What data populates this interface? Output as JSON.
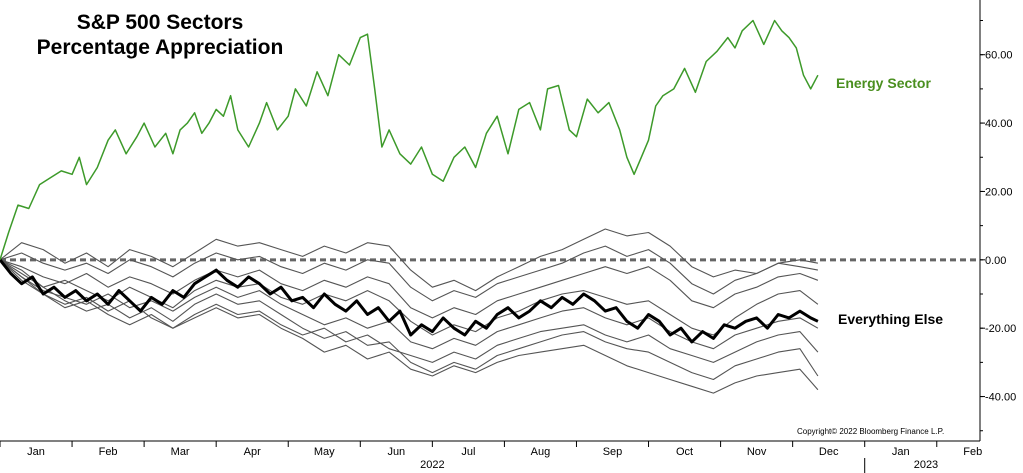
{
  "chart_data": {
    "type": "line",
    "title_line1": "S&P 500 Sectors",
    "title_line2": "Percentage Appreciation",
    "copyright": "Copyright© 2022 Bloomberg Finance L.P.",
    "y_ticks": [
      "60.00",
      "40.00",
      "20.00",
      "0.00",
      "-20.00",
      "-40.00"
    ],
    "x_month_labels": [
      "Jan",
      "Feb",
      "Mar",
      "Apr",
      "May",
      "Jun",
      "Jul",
      "Aug",
      "Sep",
      "Oct",
      "Nov",
      "Dec",
      "Jan",
      "Feb"
    ],
    "x_year_labels": [
      "2022",
      "2023"
    ],
    "ylim": [
      -53,
      76
    ],
    "xlim": [
      0,
      13.6
    ],
    "zero_line": true,
    "colors": {
      "energy": "#3d9a2a",
      "highlight": "#000000",
      "others": "#555555",
      "zero": "#666666"
    },
    "series": [
      {
        "name": "Energy Sector",
        "role": "energy",
        "x": [
          0,
          0.12,
          0.25,
          0.4,
          0.55,
          0.7,
          0.85,
          1.0,
          1.1,
          1.2,
          1.35,
          1.5,
          1.6,
          1.75,
          1.9,
          2.0,
          2.15,
          2.3,
          2.4,
          2.5,
          2.6,
          2.7,
          2.8,
          2.9,
          3.0,
          3.1,
          3.2,
          3.3,
          3.45,
          3.6,
          3.7,
          3.85,
          4.0,
          4.1,
          4.25,
          4.4,
          4.55,
          4.7,
          4.85,
          5.0,
          5.1,
          5.2,
          5.3,
          5.4,
          5.55,
          5.7,
          5.85,
          6.0,
          6.15,
          6.3,
          6.45,
          6.6,
          6.75,
          6.9,
          7.05,
          7.2,
          7.35,
          7.5,
          7.6,
          7.75,
          7.9,
          8.0,
          8.15,
          8.3,
          8.45,
          8.6,
          8.7,
          8.8,
          8.9,
          9.0,
          9.1,
          9.2,
          9.35,
          9.5,
          9.65,
          9.8,
          9.95,
          10.1,
          10.2,
          10.3,
          10.45,
          10.6,
          10.75,
          10.85,
          10.95,
          11.05,
          11.15,
          11.25,
          11.35
        ],
        "values": [
          0,
          8,
          16,
          15,
          22,
          24,
          26,
          25,
          30,
          22,
          27,
          35,
          38,
          31,
          36,
          40,
          33,
          37,
          31,
          38,
          40,
          43,
          37,
          40,
          44,
          42,
          48,
          38,
          33,
          40,
          46,
          38,
          42,
          50,
          45,
          55,
          48,
          60,
          57,
          65,
          66,
          50,
          33,
          38,
          31,
          28,
          33,
          25,
          23,
          30,
          33,
          27,
          37,
          42,
          31,
          44,
          46,
          38,
          50,
          51,
          38,
          36,
          47,
          43,
          46,
          38,
          30,
          25,
          30,
          35,
          45,
          48,
          50,
          56,
          49,
          58,
          61,
          65,
          62,
          67,
          70,
          63,
          70,
          67,
          65,
          62,
          54,
          50,
          54
        ]
      },
      {
        "name": "Everything Else",
        "role": "highlight",
        "x": [
          0,
          0.15,
          0.3,
          0.45,
          0.6,
          0.75,
          0.9,
          1.05,
          1.2,
          1.35,
          1.5,
          1.65,
          1.8,
          1.95,
          2.1,
          2.25,
          2.4,
          2.55,
          2.7,
          2.85,
          3.0,
          3.15,
          3.3,
          3.45,
          3.6,
          3.75,
          3.9,
          4.05,
          4.2,
          4.35,
          4.5,
          4.65,
          4.8,
          4.95,
          5.1,
          5.25,
          5.4,
          5.55,
          5.7,
          5.85,
          6.0,
          6.15,
          6.3,
          6.45,
          6.6,
          6.75,
          6.9,
          7.05,
          7.2,
          7.35,
          7.5,
          7.65,
          7.8,
          7.95,
          8.1,
          8.25,
          8.4,
          8.55,
          8.7,
          8.85,
          9.0,
          9.15,
          9.3,
          9.45,
          9.6,
          9.75,
          9.9,
          10.05,
          10.2,
          10.35,
          10.5,
          10.65,
          10.8,
          10.95,
          11.1,
          11.25,
          11.35
        ],
        "values": [
          0,
          -4,
          -7,
          -5,
          -10,
          -8,
          -11,
          -9,
          -12,
          -10,
          -13,
          -9,
          -12,
          -15,
          -11,
          -13,
          -9,
          -11,
          -7,
          -5,
          -3,
          -6,
          -8,
          -5,
          -7,
          -10,
          -8,
          -12,
          -11,
          -14,
          -10,
          -13,
          -15,
          -12,
          -16,
          -14,
          -18,
          -15,
          -22,
          -19,
          -21,
          -17,
          -20,
          -22,
          -18,
          -20,
          -16,
          -14,
          -17,
          -15,
          -12,
          -14,
          -11,
          -13,
          -10,
          -12,
          -15,
          -14,
          -18,
          -20,
          -16,
          -18,
          -22,
          -20,
          -24,
          -21,
          -23,
          -19,
          -20,
          -18,
          -17,
          -20,
          -16,
          -17,
          -15,
          -17,
          -18
        ]
      },
      {
        "role": "other",
        "x": [
          0,
          0.3,
          0.6,
          0.9,
          1.2,
          1.5,
          1.8,
          2.1,
          2.4,
          2.7,
          3.0,
          3.3,
          3.6,
          3.9,
          4.2,
          4.5,
          4.8,
          5.1,
          5.4,
          5.7,
          6.0,
          6.3,
          6.6,
          6.9,
          7.2,
          7.5,
          7.8,
          8.1,
          8.4,
          8.7,
          9.0,
          9.3,
          9.6,
          9.9,
          10.2,
          10.5,
          10.8,
          11.1,
          11.35
        ],
        "values": [
          0,
          5,
          3,
          -1,
          2,
          -2,
          3,
          1,
          -2,
          2,
          6,
          4,
          5,
          3,
          1,
          4,
          2,
          5,
          4,
          -3,
          -8,
          -6,
          -9,
          -5,
          -2,
          1,
          3,
          6,
          9,
          7,
          8,
          4,
          -2,
          -5,
          -3,
          -4,
          -1,
          -2,
          -3
        ]
      },
      {
        "role": "other",
        "x": [
          0,
          0.3,
          0.6,
          0.9,
          1.2,
          1.5,
          1.8,
          2.1,
          2.4,
          2.7,
          3.0,
          3.3,
          3.6,
          3.9,
          4.2,
          4.5,
          4.8,
          5.1,
          5.4,
          5.7,
          6.0,
          6.3,
          6.6,
          6.9,
          7.2,
          7.5,
          7.8,
          8.1,
          8.4,
          8.7,
          9.0,
          9.3,
          9.6,
          9.9,
          10.2,
          10.5,
          10.8,
          11.1,
          11.35
        ],
        "values": [
          0,
          2,
          -1,
          -3,
          -1,
          -4,
          0,
          -2,
          -5,
          -1,
          2,
          0,
          1,
          -2,
          -4,
          -1,
          -3,
          0,
          -1,
          -8,
          -12,
          -9,
          -11,
          -7,
          -5,
          -3,
          -1,
          2,
          4,
          1,
          3,
          -1,
          -7,
          -10,
          -6,
          -4,
          -1,
          0,
          -1
        ]
      },
      {
        "role": "other",
        "x": [
          0,
          0.3,
          0.6,
          0.9,
          1.2,
          1.5,
          1.8,
          2.1,
          2.4,
          2.7,
          3.0,
          3.3,
          3.6,
          3.9,
          4.2,
          4.5,
          4.8,
          5.1,
          5.4,
          5.7,
          6.0,
          6.3,
          6.6,
          6.9,
          7.2,
          7.5,
          7.8,
          8.1,
          8.4,
          8.7,
          9.0,
          9.3,
          9.6,
          9.9,
          10.2,
          10.5,
          10.8,
          11.1,
          11.35
        ],
        "values": [
          0,
          -2,
          -5,
          -7,
          -4,
          -8,
          -5,
          -7,
          -10,
          -6,
          -3,
          -5,
          -3,
          -7,
          -9,
          -6,
          -8,
          -5,
          -7,
          -14,
          -17,
          -14,
          -16,
          -12,
          -10,
          -8,
          -6,
          -4,
          -2,
          -4,
          -2,
          -6,
          -12,
          -14,
          -10,
          -8,
          -5,
          -4,
          -6
        ]
      },
      {
        "role": "other",
        "x": [
          0,
          0.3,
          0.6,
          0.9,
          1.2,
          1.5,
          1.8,
          2.1,
          2.4,
          2.7,
          3.0,
          3.3,
          3.6,
          3.9,
          4.2,
          4.5,
          4.8,
          5.1,
          5.4,
          5.7,
          6.0,
          6.3,
          6.6,
          6.9,
          7.2,
          7.5,
          7.8,
          8.1,
          8.4,
          8.7,
          9.0,
          9.3,
          9.6,
          9.9,
          10.2,
          10.5,
          10.8,
          11.1,
          11.35
        ],
        "values": [
          0,
          -3,
          -8,
          -6,
          -9,
          -12,
          -8,
          -11,
          -14,
          -9,
          -6,
          -8,
          -7,
          -11,
          -13,
          -10,
          -12,
          -9,
          -12,
          -18,
          -22,
          -19,
          -21,
          -17,
          -15,
          -12,
          -10,
          -9,
          -11,
          -13,
          -12,
          -16,
          -20,
          -22,
          -17,
          -13,
          -10,
          -9,
          -13
        ]
      },
      {
        "role": "other",
        "x": [
          0,
          0.3,
          0.6,
          0.9,
          1.2,
          1.5,
          1.8,
          2.1,
          2.4,
          2.7,
          3.0,
          3.3,
          3.6,
          3.9,
          4.2,
          4.5,
          4.8,
          5.1,
          5.4,
          5.7,
          6.0,
          6.3,
          6.6,
          6.9,
          7.2,
          7.5,
          7.8,
          8.1,
          8.4,
          8.7,
          9.0,
          9.3,
          9.6,
          9.9,
          10.2,
          10.5,
          10.8,
          11.1,
          11.35
        ],
        "values": [
          0,
          -5,
          -9,
          -11,
          -13,
          -10,
          -14,
          -12,
          -15,
          -11,
          -8,
          -11,
          -9,
          -13,
          -16,
          -19,
          -17,
          -20,
          -18,
          -24,
          -26,
          -23,
          -25,
          -21,
          -19,
          -17,
          -15,
          -14,
          -17,
          -19,
          -17,
          -21,
          -24,
          -26,
          -22,
          -20,
          -18,
          -17,
          -20
        ]
      },
      {
        "role": "other",
        "x": [
          0,
          0.3,
          0.6,
          0.9,
          1.2,
          1.5,
          1.8,
          2.1,
          2.4,
          2.7,
          3.0,
          3.3,
          3.6,
          3.9,
          4.2,
          4.5,
          4.8,
          5.1,
          5.4,
          5.7,
          6.0,
          6.3,
          6.6,
          6.9,
          7.2,
          7.5,
          7.8,
          8.1,
          8.4,
          8.7,
          9.0,
          9.3,
          9.6,
          9.9,
          10.2,
          10.5,
          10.8,
          11.1,
          11.35
        ],
        "values": [
          0,
          -6,
          -10,
          -13,
          -11,
          -15,
          -12,
          -17,
          -20,
          -16,
          -13,
          -16,
          -15,
          -19,
          -22,
          -20,
          -24,
          -22,
          -26,
          -28,
          -30,
          -27,
          -29,
          -25,
          -23,
          -21,
          -20,
          -19,
          -22,
          -24,
          -22,
          -26,
          -28,
          -30,
          -27,
          -24,
          -22,
          -21,
          -27
        ]
      },
      {
        "role": "other",
        "x": [
          0,
          0.3,
          0.6,
          0.9,
          1.2,
          1.5,
          1.8,
          2.1,
          2.4,
          2.7,
          3.0,
          3.3,
          3.6,
          3.9,
          4.2,
          4.5,
          4.8,
          5.1,
          5.4,
          5.7,
          6.0,
          6.3,
          6.6,
          6.9,
          7.2,
          7.5,
          7.8,
          8.1,
          8.4,
          8.7,
          9.0,
          9.3,
          9.6,
          9.9,
          10.2,
          10.5,
          10.8,
          11.1,
          11.35
        ],
        "values": [
          0,
          -4,
          -8,
          -12,
          -15,
          -13,
          -17,
          -14,
          -18,
          -13,
          -10,
          -13,
          -12,
          -16,
          -20,
          -23,
          -21,
          -25,
          -24,
          -30,
          -33,
          -30,
          -32,
          -28,
          -26,
          -24,
          -22,
          -21,
          -24,
          -26,
          -27,
          -30,
          -33,
          -35,
          -31,
          -29,
          -27,
          -26,
          -34
        ]
      },
      {
        "role": "other",
        "x": [
          0,
          0.3,
          0.6,
          0.9,
          1.2,
          1.5,
          1.8,
          2.1,
          2.4,
          2.7,
          3.0,
          3.3,
          3.6,
          3.9,
          4.2,
          4.5,
          4.8,
          5.1,
          5.4,
          5.7,
          6.0,
          6.3,
          6.6,
          6.9,
          7.2,
          7.5,
          7.8,
          8.1,
          8.4,
          8.7,
          9.0,
          9.3,
          9.6,
          9.9,
          10.2,
          10.5,
          10.8,
          11.1,
          11.35
        ],
        "values": [
          0,
          -5,
          -10,
          -14,
          -12,
          -16,
          -19,
          -16,
          -20,
          -17,
          -14,
          -17,
          -16,
          -20,
          -23,
          -27,
          -25,
          -29,
          -27,
          -32,
          -34,
          -31,
          -33,
          -30,
          -28,
          -27,
          -26,
          -25,
          -28,
          -31,
          -33,
          -35,
          -37,
          -39,
          -36,
          -34,
          -33,
          -32,
          -38
        ]
      }
    ]
  }
}
